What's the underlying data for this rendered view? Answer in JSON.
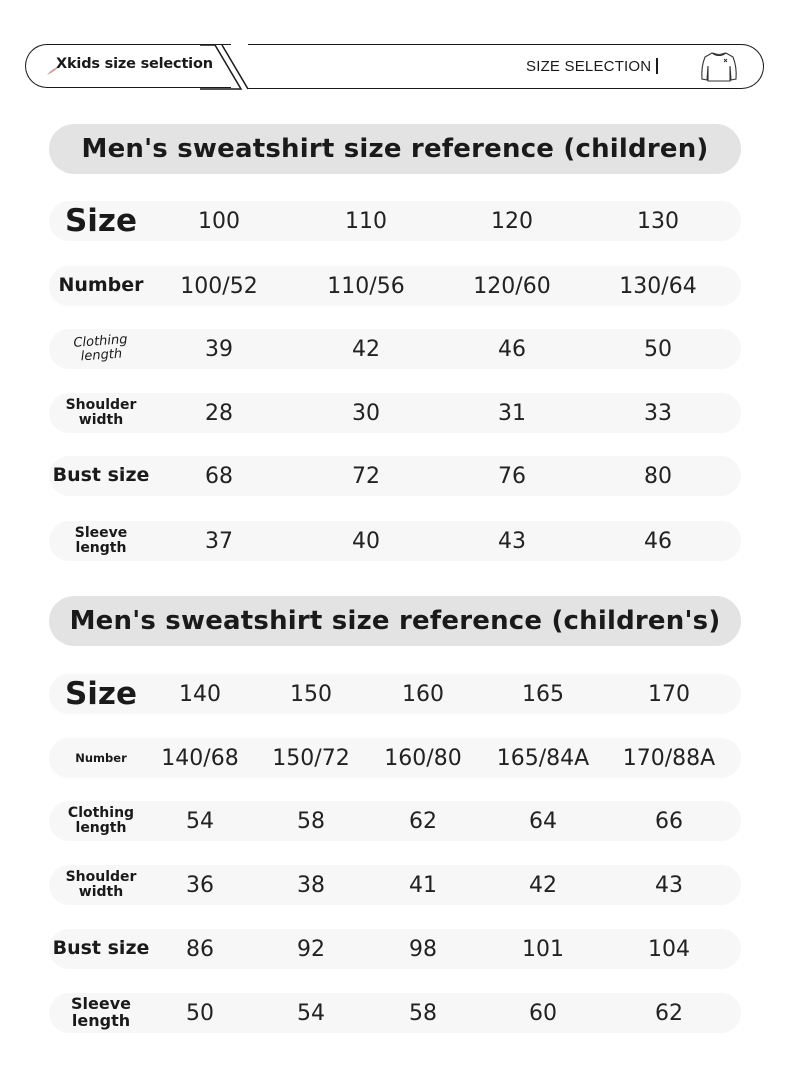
{
  "header": {
    "brand_title": "Xkids size selection",
    "selection_label": "SIZE SELECTION",
    "icon": "sweatshirt-icon"
  },
  "tables": [
    {
      "title": "Men's sweatshirt size reference (children)",
      "rows": [
        {
          "label": "Size",
          "values": [
            "100",
            "110",
            "120",
            "130"
          ]
        },
        {
          "label": "Number",
          "values": [
            "100/52",
            "110/56",
            "120/60",
            "130/64"
          ]
        },
        {
          "label": "Clothing\nlength",
          "values": [
            "39",
            "42",
            "46",
            "50"
          ]
        },
        {
          "label": "Shoulder\nwidth",
          "values": [
            "28",
            "30",
            "31",
            "33"
          ]
        },
        {
          "label": "Bust size",
          "values": [
            "68",
            "72",
            "76",
            "80"
          ]
        },
        {
          "label": "Sleeve\nlength",
          "values": [
            "37",
            "40",
            "43",
            "46"
          ]
        }
      ]
    },
    {
      "title": "Men's sweatshirt size reference (children's)",
      "rows": [
        {
          "label": "Size",
          "values": [
            "140",
            "150",
            "160",
            "165",
            "170"
          ]
        },
        {
          "label": "Number",
          "values": [
            "140/68",
            "150/72",
            "160/80",
            "165/84A",
            "170/88A"
          ]
        },
        {
          "label": "Clothing\nlength",
          "values": [
            "54",
            "58",
            "62",
            "64",
            "66"
          ]
        },
        {
          "label": "Shoulder\nwidth",
          "values": [
            "36",
            "38",
            "41",
            "42",
            "43"
          ]
        },
        {
          "label": "Bust size",
          "values": [
            "86",
            "92",
            "98",
            "101",
            "104"
          ]
        },
        {
          "label": "Sleeve\nlength",
          "values": [
            "50",
            "54",
            "58",
            "60",
            "62"
          ]
        }
      ]
    }
  ]
}
